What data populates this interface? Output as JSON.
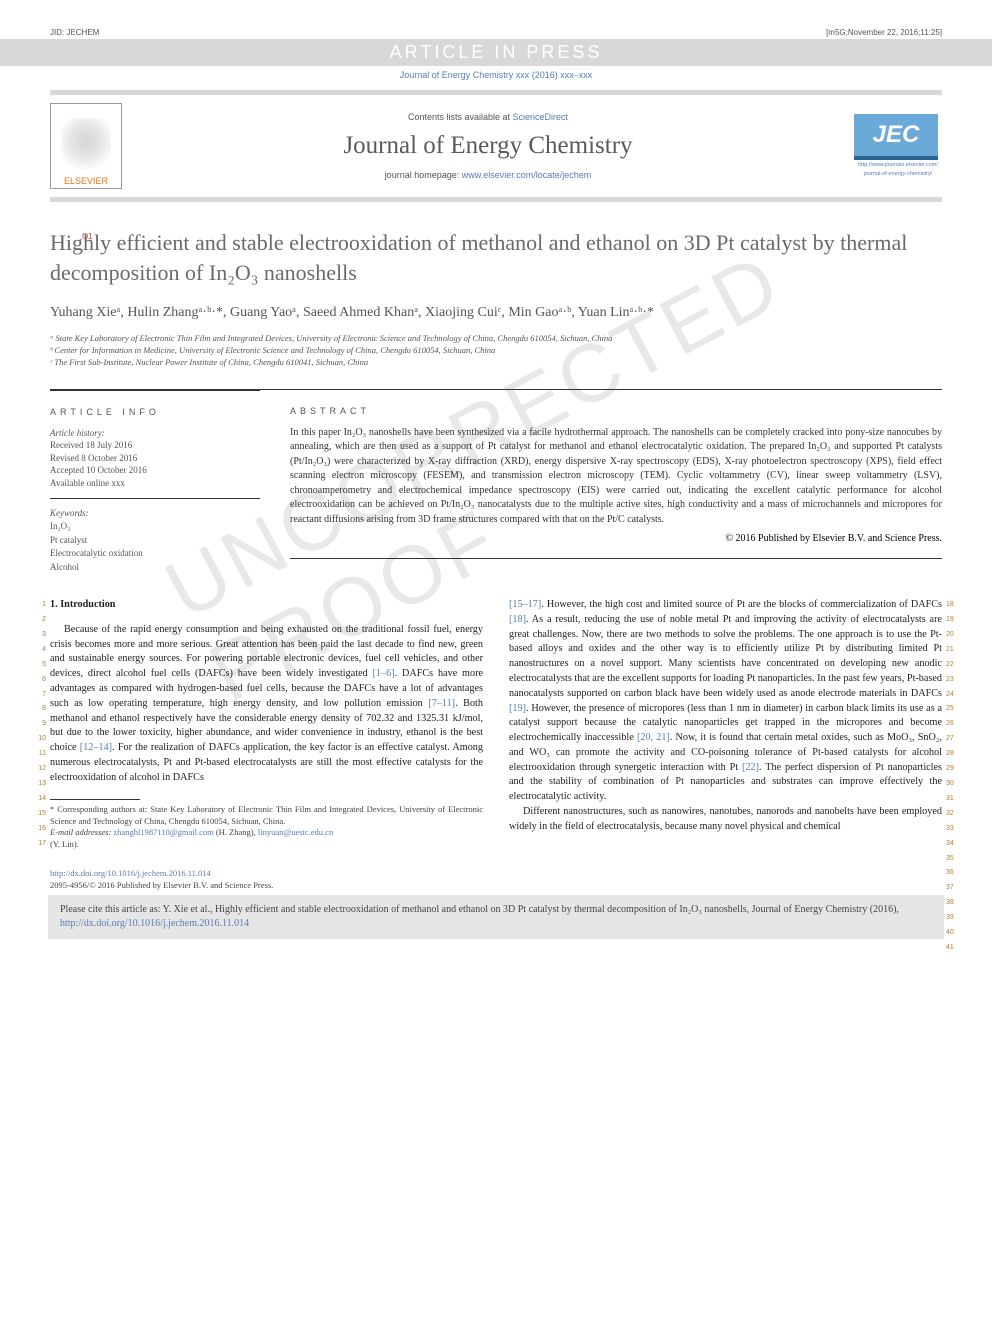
{
  "meta": {
    "jid": "JID: JECHEM",
    "stamp": "[m5G;November 22, 2016;11:25]",
    "article_in_press": "ARTICLE IN PRESS",
    "journal_ref": "Journal of Energy Chemistry xxx (2016) xxx–xxx",
    "contents_line_pre": "Contents lists available at ",
    "contents_line_link": "ScienceDirect",
    "journal_name": "Journal of Energy Chemistry",
    "homepage_pre": "journal homepage: ",
    "homepage_link": "www.elsevier.com/locate/jechem",
    "elsevier": "ELSEVIER",
    "jec": "JEC",
    "jec_sub1": "http://www.journals.elsevier.com/",
    "jec_sub2": "journal-of-energy-chemistry/"
  },
  "title": "Highly efficient and stable electrooxidation of methanol and ethanol on 3D Pt catalyst by thermal decomposition of In₂O₃ nanoshells",
  "q_marker": "Q1",
  "authors_html": "Yuhang Xieᵃ, Hulin Zhangᵃ·ᵇ·*, Guang Yaoᵃ, Saeed Ahmed Khanᵃ, Xiaojing Cuiᶜ, Min Gaoᵃ·ᵇ, Yuan Linᵃ·ᵇ·*",
  "affiliations": {
    "a": "ᵃ State Key Laboratory of Electronic Thin Film and Integrated Devices, University of Electronic Science and Technology of China, Chengdu 610054, Sichuan, China",
    "b": "ᵇ Center for Information in Medicine, University of Electronic Science and Technology of China, Chengdu 610054, Sichuan, China",
    "c": "ᶜ The First Sub-Institute, Nuclear Power Institute of China, Chengdu 610041, Sichuan, China"
  },
  "info": {
    "label": "article info",
    "history_label": "Article history:",
    "received": "Received 18 July 2016",
    "revised": "Revised 8 October 2016",
    "accepted": "Accepted 10 October 2016",
    "online": "Available online xxx",
    "kw_label": "Keywords:",
    "kws": [
      "In₂O₃",
      "Pt catalyst",
      "Electrocatalytic oxidation",
      "Alcohol"
    ]
  },
  "abstract": {
    "label": "abstract",
    "text": "In this paper In₂O₃ nanoshells have been synthesized via a facile hydrothermal approach. The nanoshells can be completely cracked into pony-size nanocubes by annealing, which are then used as a support of Pt catalyst for methanol and ethanol electrocatalytic oxidation. The prepared In₂O₃ and supported Pt catalysts (Pt/In₂O₃) were characterized by X-ray diffraction (XRD), energy dispersive X-ray spectroscopy (EDS), X-ray photoelectron spectroscopy (XPS), field effect scanning electron microscopy (FESEM), and transmission electron microscopy (TEM). Cyclic voltammetry (CV), linear sweep voltammetry (LSV), chronoamperometry and electrochemical impedance spectroscopy (EIS) were carried out, indicating the excellent catalytic performance for alcohol electrooxidation can be achieved on Pt/In₂O₃ nanocatalysts due to the multiple active sites, high conductivity and a mass of microchannels and micropores for reactant diffusions arising from 3D frame structures compared with that on the Pt/C catalysts.",
    "copyright": "© 2016 Published by Elsevier B.V. and Science Press."
  },
  "body": {
    "sec_num": "1",
    "sec_title": "1. Introduction",
    "left_lines": [
      "1",
      "2",
      "3",
      "4",
      "5",
      "6",
      "7",
      "8",
      "9",
      "10",
      "11",
      "12",
      "13",
      "14",
      "15",
      "16",
      "17"
    ],
    "right_lines": [
      "18",
      "19",
      "20",
      "21",
      "22",
      "23",
      "24",
      "25",
      "26",
      "27",
      "28",
      "29",
      "30",
      "31",
      "32",
      "33",
      "34",
      "35",
      "36",
      "37",
      "38",
      "39",
      "40",
      "41"
    ],
    "left_para": "Because of the rapid energy consumption and being exhausted on the traditional fossil fuel, energy crisis becomes more and more serious. Great attention has been paid the last decade to find new, green and sustainable energy sources. For powering portable electronic devices, fuel cell vehicles, and other devices, direct alcohol fuel cells (DAFCs) have been widely investigated [1–6]. DAFCs have more advantages as compared with hydrogen-based fuel cells, because the DAFCs have a lot of advantages such as low operating temperature, high energy density, and low pollution emission [7–11]. Both methanol and ethanol respectively have the considerable energy density of 702.32 and 1325.31 kJ/mol, but due to the lower toxicity, higher abundance, and wider convenience in industry, ethanol is the best choice [12–14]. For the realization of DAFCs application, the key factor is an effective catalyst. Among numerous electrocatalysts, Pt and Pt-based electrocatalysts are still the most effective catalysts for the electrooxidation of alcohol in DAFCs",
    "right_para1": "[15–17]. However, the high cost and limited source of Pt are the blocks of commercialization of DAFCs [18]. As a result, reducing the use of noble metal Pt and improving the activity of electrocatalysts are great challenges. Now, there are two methods to solve the problems. The one approach is to use the Pt-based alloys and oxides and the other way is to efficiently utilize Pt by distributing limited Pt nanostructures on a novel support. Many scientists have concentrated on developing new anodic electrocatalysts that are the excellent supports for loading Pt nanoparticles. In the past few years, Pt-based nanocatalysts supported on carbon black have been widely used as anode electrode materials in DAFCs [19]. However, the presence of micropores (less than 1 nm in diameter) in carbon black limits its use as a catalyst support because the catalytic nanoparticles get trapped in the micropores and become electrochemically inaccessible [20, 21]. Now, it is found that certain metal oxides, such as MoO₃, SnO₂, and WO₃ can promote the activity and CO-poisoning tolerance of Pt-based catalysts for alcohol electrooxidation through synergetic interaction with Pt [22]. The perfect dispersion of Pt nanoparticles and the stability of combination of Pt nanoparticles and substrates can improve effectively the electrocatalytic activity.",
    "right_para2": "Different nanostructures, such as nanowires, nanotubes, nanorods and nanobelts have been employed widely in the field of electrocatalysis, because many novel physical and chemical"
  },
  "footnotes": {
    "corr": "* Corresponding authors at: State Key Laboratory of Electronic Thin Film and Integrated Devices, University of Electronic Science and Technology of China, Chengdu 610054, Sichuan, China.",
    "email_pre": "E-mail addresses: ",
    "email1": "zhanghl1987110@gmail.com",
    "email1_who": " (H. Zhang), ",
    "email2": "linyuan@uestc.edu.cn",
    "email2_who": " (Y. Lin)."
  },
  "doi": {
    "link": "http://dx.doi.org/10.1016/j.jechem.2016.11.014",
    "issn": "2095-4956/© 2016 Published by Elsevier B.V. and Science Press."
  },
  "citebox": {
    "text_pre": "Please cite this article as: Y. Xie et al., Highly efficient and stable electrooxidation of methanol and ethanol on 3D Pt catalyst by thermal decomposition of In₂O₃ nanoshells, Journal of Energy Chemistry (2016), ",
    "link": "http://dx.doi.org/10.1016/j.jechem.2016.11.014"
  },
  "watermark": "UNCORRECTED PROOF",
  "colors": {
    "link": "#5b7bb5",
    "lineno": "#b08030",
    "gray_bg": "#d8d8d8",
    "elsevier_orange": "#e67817"
  }
}
